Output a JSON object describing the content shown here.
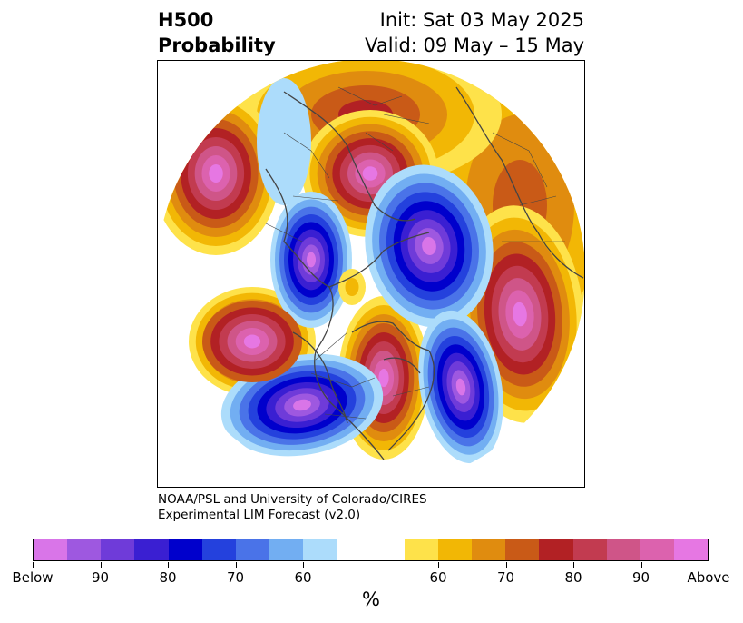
{
  "header": {
    "left_line1": "H500",
    "left_line2": "Probability",
    "right_line1": "Init: Sat 03 May 2025",
    "right_line2": "Valid: 09 May – 15 May"
  },
  "credit": {
    "line1": "NOAA/PSL and University of Colorado/CIRES",
    "line2": "Experimental LIM Forecast (v2.0)"
  },
  "colorbar": {
    "colors": [
      "#d975e8",
      "#9e58e0",
      "#6f3bd9",
      "#3a1fd2",
      "#0000cc",
      "#2441dd",
      "#4a73e8",
      "#72aef2",
      "#acdcfb",
      "#ffffff",
      "#ffffff",
      "#fee24a",
      "#f2b705",
      "#e08c0f",
      "#c95a17",
      "#b22124",
      "#c23b50",
      "#cf5588",
      "#dc62ae",
      "#e677e3"
    ],
    "labels": [
      "Below",
      "90",
      "80",
      "70",
      "60",
      "60",
      "70",
      "80",
      "90",
      "Above"
    ],
    "unit": "%"
  },
  "map": {
    "projection": "north-polar-stereographic",
    "variable": "500 hPa height probability"
  }
}
